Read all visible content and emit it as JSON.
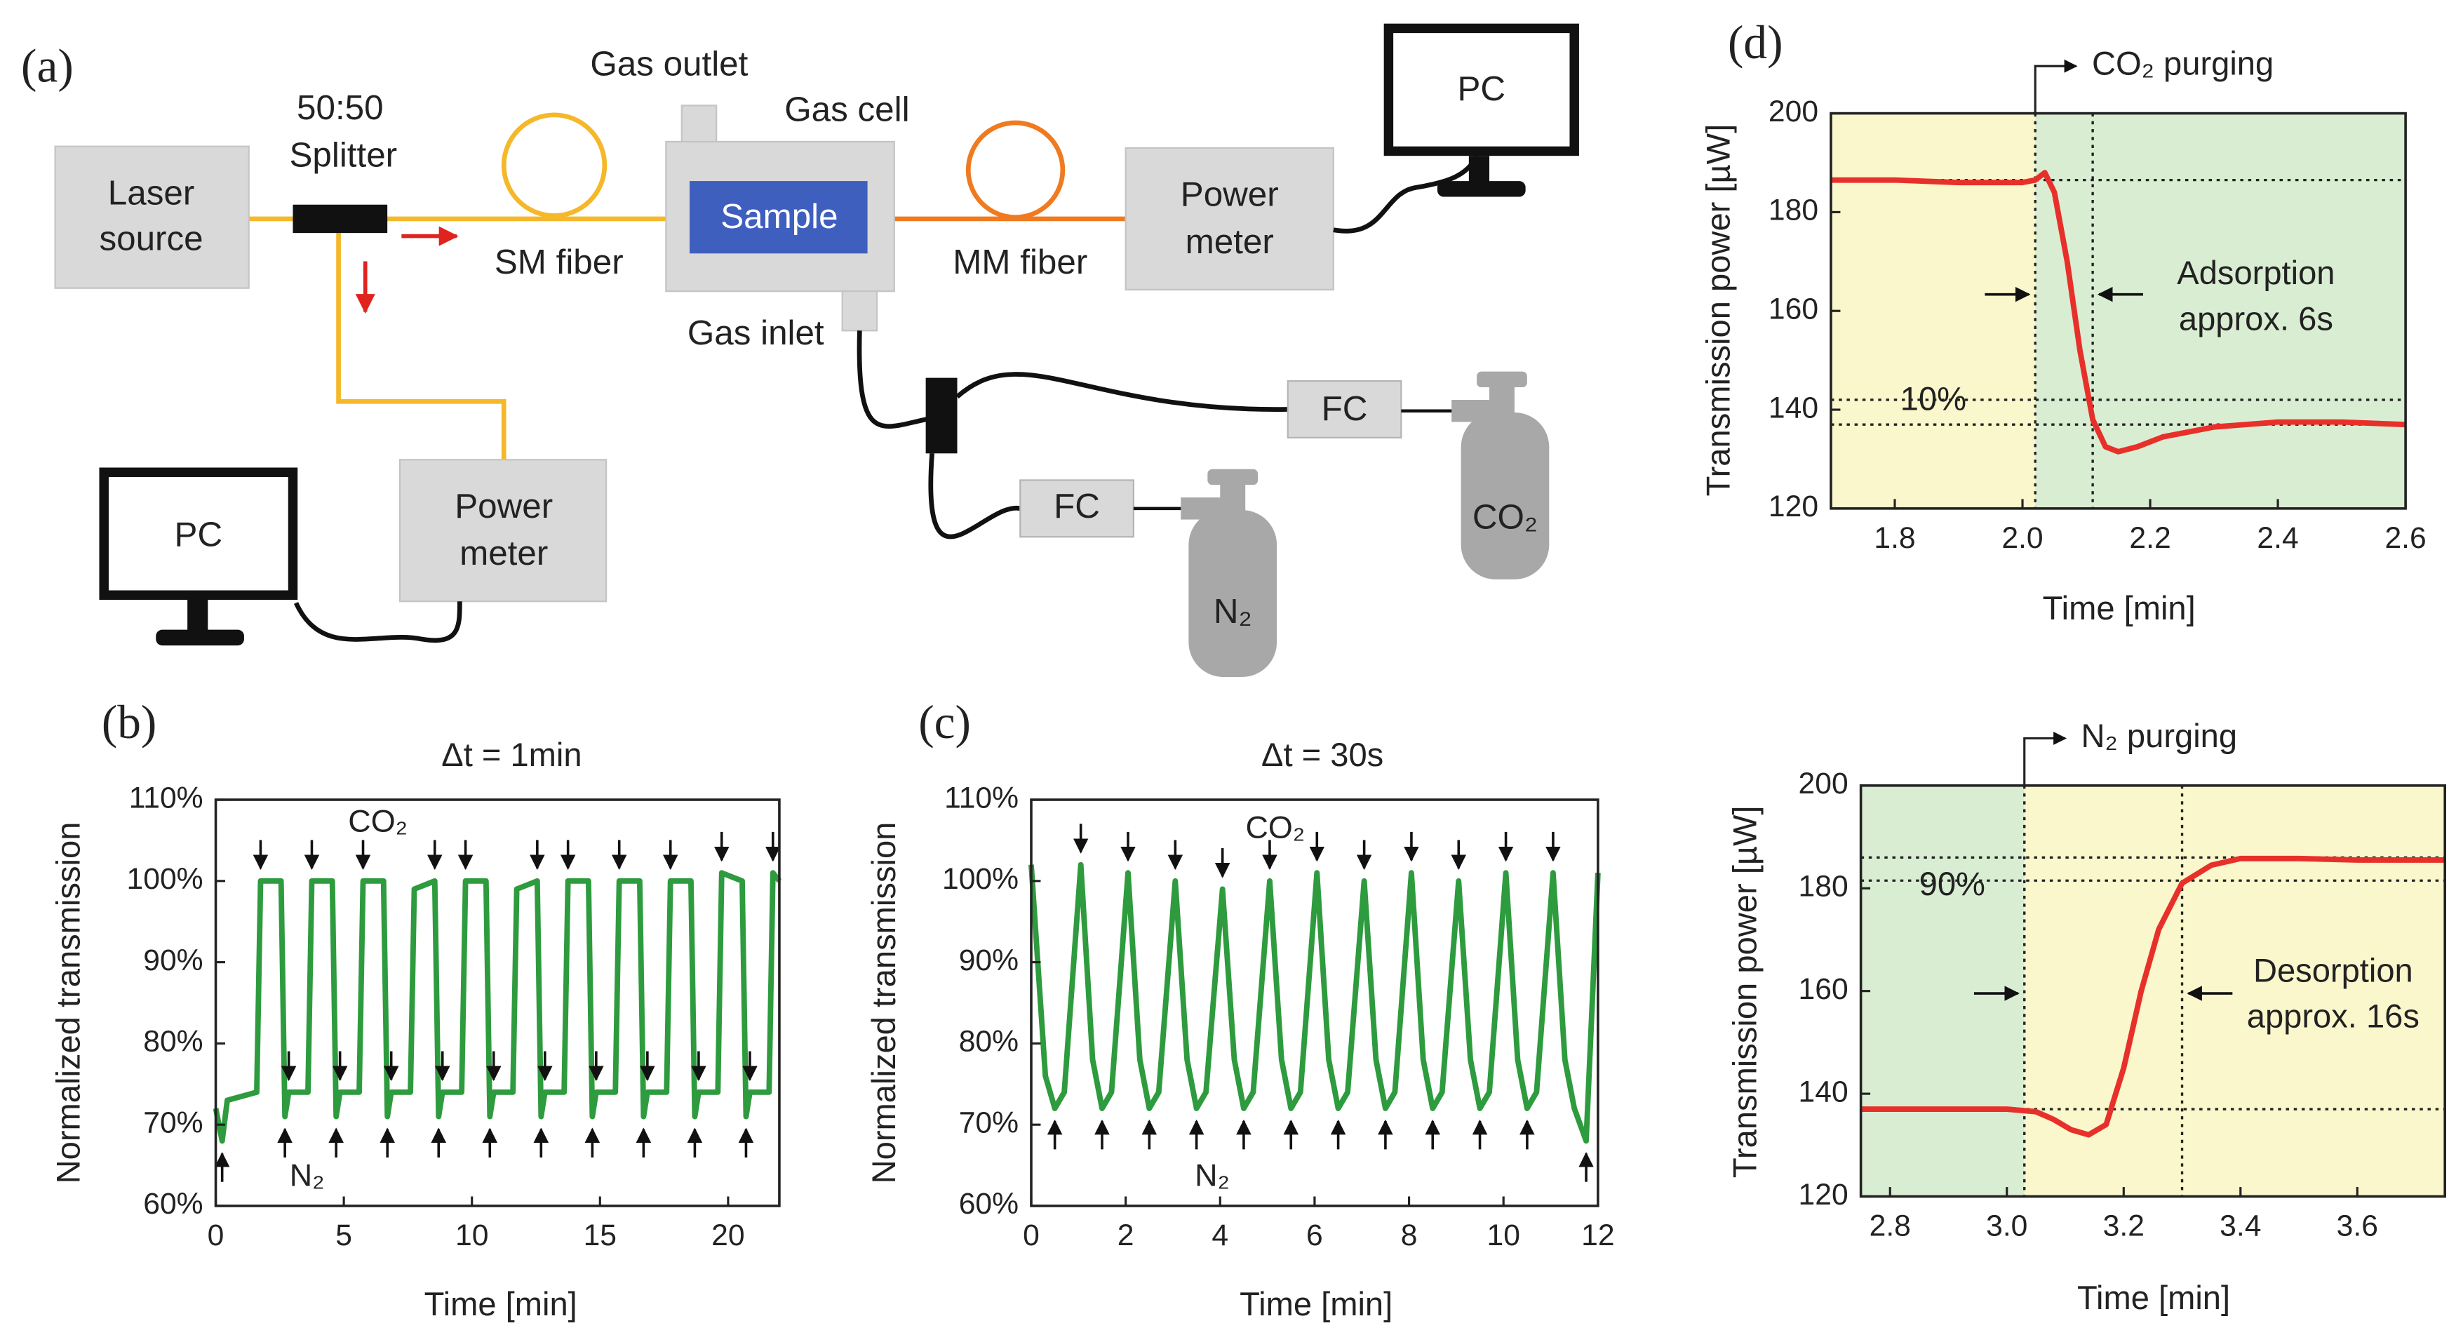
{
  "diagram": {
    "label": "(a)",
    "laser": [
      "Laser",
      "source"
    ],
    "splitter": [
      "50:50",
      "Splitter"
    ],
    "sm_fiber": "SM fiber",
    "gas_outlet": "Gas outlet",
    "gas_cell": "Gas cell",
    "sample": "Sample",
    "gas_inlet": "Gas inlet",
    "mm_fiber": "MM fiber",
    "power_meter_1": [
      "Power",
      "meter"
    ],
    "power_meter_2": [
      "Power",
      "meter"
    ],
    "pc_1": "PC",
    "pc_2": "PC",
    "fc_1": "FC",
    "fc_2": "FC",
    "co2": "CO₂",
    "n2": "N₂"
  },
  "chart_data": [
    {
      "type": "line",
      "label": "(b)",
      "title": "Δt = 1min",
      "x_label": "Time [min]",
      "y_label": "Normalized transmission",
      "xlim": [
        0,
        22
      ],
      "xticks": [
        0,
        5,
        10,
        15,
        20
      ],
      "ylim": [
        60,
        110
      ],
      "yticks": [
        {
          "value": 60,
          "label": "60%"
        },
        {
          "value": 70,
          "label": "70%"
        },
        {
          "value": 80,
          "label": "80%"
        },
        {
          "value": 90,
          "label": "90%"
        },
        {
          "value": 100,
          "label": "100%"
        },
        {
          "value": 110,
          "label": "110%"
        }
      ],
      "grid": false,
      "annotations": {
        "up": "CO₂",
        "down": "N₂"
      },
      "x": [
        0,
        0.25,
        0.45,
        1.6,
        1.75,
        2.55,
        2.7,
        2.85,
        3.6,
        3.75,
        4.55,
        4.7,
        4.85,
        5.6,
        5.75,
        6.55,
        6.7,
        6.85,
        7.6,
        7.75,
        8.55,
        8.7,
        8.85,
        9.6,
        9.75,
        10.55,
        10.7,
        10.85,
        11.6,
        11.75,
        12.55,
        12.7,
        12.85,
        13.6,
        13.75,
        14.55,
        14.7,
        14.85,
        15.6,
        15.75,
        16.55,
        16.7,
        16.85,
        17.6,
        17.75,
        18.55,
        18.7,
        18.85,
        19.6,
        19.75,
        20.55,
        20.7,
        20.85,
        21.6,
        21.75,
        22
      ],
      "series": [
        {
          "color": "#2e9b3e",
          "values": [
            72,
            68,
            73,
            74,
            100,
            100,
            71,
            74,
            74,
            100,
            100,
            71,
            74,
            74,
            100,
            100,
            71,
            74,
            74,
            99,
            100,
            71,
            74,
            74,
            100,
            100,
            71,
            74,
            74,
            99,
            100,
            71,
            74,
            74,
            100,
            100,
            71,
            74,
            74,
            100,
            100,
            71,
            74,
            74,
            100,
            100,
            71,
            74,
            74,
            101,
            100,
            71,
            74,
            74,
            101,
            100
          ]
        }
      ]
    },
    {
      "type": "line",
      "label": "(c)",
      "title": "Δt = 30s",
      "x_label": "Time [min]",
      "y_label": "Normalized transmission",
      "xlim": [
        0,
        12
      ],
      "xticks": [
        0,
        2,
        4,
        6,
        8,
        10,
        12
      ],
      "ylim": [
        60,
        110
      ],
      "yticks": [
        {
          "value": 60,
          "label": "60%"
        },
        {
          "value": 70,
          "label": "70%"
        },
        {
          "value": 80,
          "label": "80%"
        },
        {
          "value": 90,
          "label": "90%"
        },
        {
          "value": 100,
          "label": "100%"
        },
        {
          "value": 110,
          "label": "110%"
        }
      ],
      "grid": false,
      "annotations": {
        "up": "CO₂",
        "down": "N₂"
      },
      "x": [
        0,
        0.3,
        0.5,
        0.7,
        1.05,
        1.3,
        1.5,
        1.7,
        2.05,
        2.3,
        2.5,
        2.7,
        3.05,
        3.3,
        3.5,
        3.7,
        4.05,
        4.3,
        4.5,
        4.7,
        5.05,
        5.3,
        5.5,
        5.7,
        6.05,
        6.3,
        6.5,
        6.7,
        7.05,
        7.3,
        7.5,
        7.7,
        8.05,
        8.3,
        8.5,
        8.7,
        9.05,
        9.3,
        9.5,
        9.7,
        10.05,
        10.3,
        10.5,
        10.7,
        11.05,
        11.3,
        11.5,
        11.75,
        12
      ],
      "series": [
        {
          "color": "#2e9b3e",
          "values": [
            102,
            76,
            72,
            74,
            102,
            78,
            72,
            74,
            101,
            78,
            72,
            74,
            100,
            78,
            72,
            74,
            99,
            78,
            72,
            74,
            100,
            78,
            72,
            74,
            101,
            78,
            72,
            74,
            100,
            78,
            72,
            74,
            101,
            78,
            72,
            74,
            100,
            78,
            72,
            74,
            101,
            78,
            72,
            74,
            101,
            78,
            72,
            68,
            101
          ]
        }
      ]
    },
    {
      "type": "line",
      "label": "(d)",
      "x_label": "Time [min]",
      "y_label": "Transmission power [µW]",
      "xlim": [
        1.7,
        2.6
      ],
      "xticks": [
        1.8,
        {
          "value": 2,
          "label": "2.0"
        },
        2.2,
        2.4,
        2.6
      ],
      "ylim": [
        120,
        200
      ],
      "yticks": [
        120,
        140,
        160,
        180,
        200
      ],
      "grid": false,
      "regions": [
        {
          "from": 1.7,
          "to": 2.02,
          "color": "#fbf7cc"
        },
        {
          "from": 2.02,
          "to": 2.6,
          "color": "#d9edd3"
        }
      ],
      "hlines": [
        186.5,
        142,
        137
      ],
      "vlines": [
        2.02,
        2.11
      ],
      "annotations": {
        "purging": "CO₂ purging",
        "note": [
          "Adsorption",
          "approx. 6s"
        ],
        "percent": "10%"
      },
      "x": [
        1.7,
        1.8,
        1.9,
        2.0,
        2.02,
        2.035,
        2.05,
        2.07,
        2.09,
        2.11,
        2.13,
        2.15,
        2.18,
        2.22,
        2.3,
        2.4,
        2.5,
        2.6
      ],
      "series": [
        {
          "color": "#e8302a",
          "values": [
            186.5,
            186.5,
            186,
            186,
            186.5,
            188,
            184,
            170,
            152,
            138,
            132.5,
            131.5,
            132.5,
            134.5,
            136.5,
            137.5,
            137.5,
            137
          ]
        }
      ]
    },
    {
      "type": "line",
      "x_label": "Time [min]",
      "y_label": "Transmission power [µW]",
      "xlim": [
        2.75,
        3.75
      ],
      "xticks": [
        2.8,
        {
          "value": 3,
          "label": "3.0"
        },
        3.2,
        3.4,
        3.6
      ],
      "ylim": [
        120,
        200
      ],
      "yticks": [
        120,
        140,
        160,
        180,
        200
      ],
      "grid": false,
      "regions": [
        {
          "from": 2.75,
          "to": 3.03,
          "color": "#d9edd3"
        },
        {
          "from": 3.03,
          "to": 3.75,
          "color": "#fbf7cc"
        }
      ],
      "hlines": [
        186,
        181.5,
        137
      ],
      "vlines": [
        3.03,
        3.3
      ],
      "annotations": {
        "purging": "N₂ purging",
        "note": [
          "Desorption",
          "approx. 16s"
        ],
        "percent": "90%"
      },
      "x": [
        2.75,
        2.9,
        3.0,
        3.05,
        3.08,
        3.11,
        3.14,
        3.17,
        3.2,
        3.23,
        3.26,
        3.3,
        3.35,
        3.4,
        3.5,
        3.6,
        3.75
      ],
      "series": [
        {
          "color": "#e8302a",
          "values": [
            137,
            137,
            137,
            136.5,
            135,
            133,
            132,
            134,
            145,
            160,
            172,
            181,
            184.5,
            185.8,
            185.8,
            185.5,
            185.5
          ]
        }
      ]
    }
  ]
}
